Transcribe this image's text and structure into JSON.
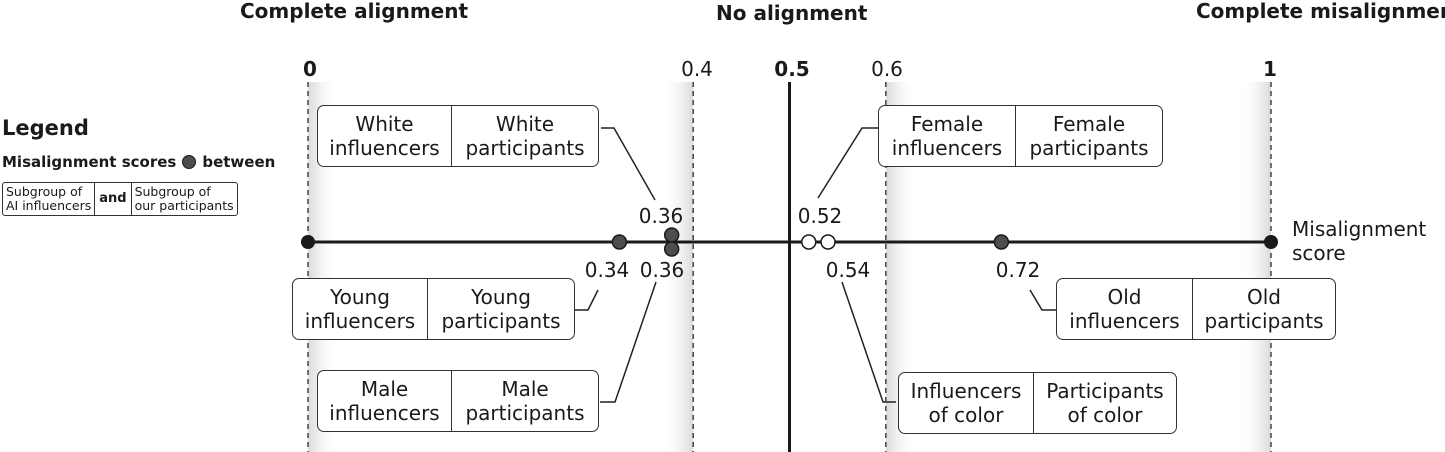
{
  "headers": {
    "complete_alignment": "Complete\nalignment",
    "no_alignment": "No alignment",
    "complete_misalignment": "Complete\nmisalignment"
  },
  "ticks": [
    {
      "value": 0,
      "label": "0",
      "bold": true
    },
    {
      "value": 0.4,
      "label": "0.4",
      "bold": false
    },
    {
      "value": 0.5,
      "label": "0.5",
      "bold": true
    },
    {
      "value": 0.6,
      "label": "0.6",
      "bold": false
    },
    {
      "value": 1,
      "label": "1",
      "bold": true
    }
  ],
  "legend": {
    "title": "Legend",
    "subtitle_left": "Misalignment scores",
    "subtitle_right": "between",
    "box_left": "Subgroup of\nAI influencers",
    "box_and": "and",
    "box_right": "Subgroup of\nour participants"
  },
  "axis_label": "Misalignment\nscore",
  "chart_data": {
    "type": "scatter",
    "title": "",
    "xlabel": "Misalignment score",
    "xlim": [
      0,
      1
    ],
    "shaded_regions": [
      [
        0,
        0.4
      ],
      [
        0.6,
        1
      ]
    ],
    "points": [
      {
        "value": 0.34,
        "label": "0.34",
        "influencers": "Young\ninfluencers",
        "participants": "Young\nparticipants",
        "filled": true
      },
      {
        "value": 0.36,
        "label": "0.36",
        "influencers": "White\ninfluencers",
        "participants": "White\nparticipants",
        "filled": true
      },
      {
        "value": 0.36,
        "label": "0.36",
        "influencers": "Male\ninfluencers",
        "participants": "Male\nparticipants",
        "filled": true
      },
      {
        "value": 0.52,
        "label": "0.52",
        "influencers": "Female\ninfluencers",
        "participants": "Female\nparticipants",
        "filled": false
      },
      {
        "value": 0.54,
        "label": "0.54",
        "influencers": "Influencers\nof color",
        "participants": "Participants\nof color",
        "filled": false
      },
      {
        "value": 0.72,
        "label": "0.72",
        "influencers": "Old\ninfluencers",
        "participants": "Old\nparticipants",
        "filled": true
      }
    ],
    "endpoints": [
      0,
      1
    ],
    "colors": {
      "filled": "#4a4e52",
      "empty": "#ffffff",
      "stroke": "#1a1a1a",
      "shade": "#d9d9d9"
    }
  }
}
